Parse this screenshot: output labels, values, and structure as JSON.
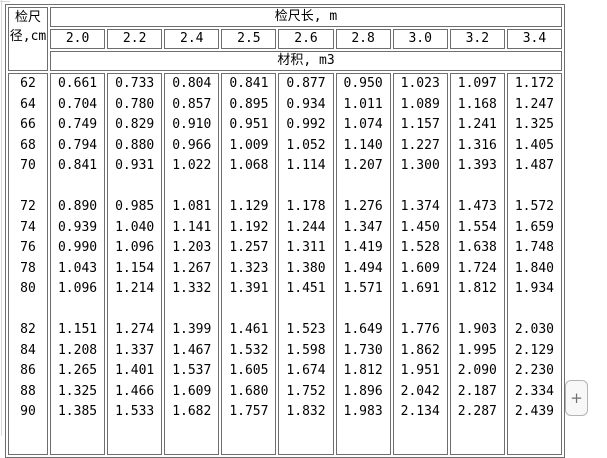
{
  "table": {
    "corner_header_line1": "检尺",
    "corner_header_line2": "径,cm",
    "length_header": "检尺长, m",
    "volume_header": "材积, m3",
    "length_columns": [
      "2.0",
      "2.2",
      "2.4",
      "2.5",
      "2.6",
      "2.8",
      "3.0",
      "3.2",
      "3.4"
    ],
    "groups": [
      {
        "rows": [
          {
            "diameter": "62",
            "values": [
              "0.661",
              "0.733",
              "0.804",
              "0.841",
              "0.877",
              "0.950",
              "1.023",
              "1.097",
              "1.172"
            ]
          },
          {
            "diameter": "64",
            "values": [
              "0.704",
              "0.780",
              "0.857",
              "0.895",
              "0.934",
              "1.011",
              "1.089",
              "1.168",
              "1.247"
            ]
          },
          {
            "diameter": "66",
            "values": [
              "0.749",
              "0.829",
              "0.910",
              "0.951",
              "0.992",
              "1.074",
              "1.157",
              "1.241",
              "1.325"
            ]
          },
          {
            "diameter": "68",
            "values": [
              "0.794",
              "0.880",
              "0.966",
              "1.009",
              "1.052",
              "1.140",
              "1.227",
              "1.316",
              "1.405"
            ]
          },
          {
            "diameter": "70",
            "values": [
              "0.841",
              "0.931",
              "1.022",
              "1.068",
              "1.114",
              "1.207",
              "1.300",
              "1.393",
              "1.487"
            ]
          }
        ]
      },
      {
        "rows": [
          {
            "diameter": "72",
            "values": [
              "0.890",
              "0.985",
              "1.081",
              "1.129",
              "1.178",
              "1.276",
              "1.374",
              "1.473",
              "1.572"
            ]
          },
          {
            "diameter": "74",
            "values": [
              "0.939",
              "1.040",
              "1.141",
              "1.192",
              "1.244",
              "1.347",
              "1.450",
              "1.554",
              "1.659"
            ]
          },
          {
            "diameter": "76",
            "values": [
              "0.990",
              "1.096",
              "1.203",
              "1.257",
              "1.311",
              "1.419",
              "1.528",
              "1.638",
              "1.748"
            ]
          },
          {
            "diameter": "78",
            "values": [
              "1.043",
              "1.154",
              "1.267",
              "1.323",
              "1.380",
              "1.494",
              "1.609",
              "1.724",
              "1.840"
            ]
          },
          {
            "diameter": "80",
            "values": [
              "1.096",
              "1.214",
              "1.332",
              "1.391",
              "1.451",
              "1.571",
              "1.691",
              "1.812",
              "1.934"
            ]
          }
        ]
      },
      {
        "rows": [
          {
            "diameter": "82",
            "values": [
              "1.151",
              "1.274",
              "1.399",
              "1.461",
              "1.523",
              "1.649",
              "1.776",
              "1.903",
              "2.030"
            ]
          },
          {
            "diameter": "84",
            "values": [
              "1.208",
              "1.337",
              "1.467",
              "1.532",
              "1.598",
              "1.730",
              "1.862",
              "1.995",
              "2.129"
            ]
          },
          {
            "diameter": "86",
            "values": [
              "1.265",
              "1.401",
              "1.537",
              "1.605",
              "1.674",
              "1.812",
              "1.951",
              "2.090",
              "2.230"
            ]
          },
          {
            "diameter": "88",
            "values": [
              "1.325",
              "1.466",
              "1.609",
              "1.680",
              "1.752",
              "1.896",
              "2.042",
              "2.187",
              "2.334"
            ]
          },
          {
            "diameter": "90",
            "values": [
              "1.385",
              "1.533",
              "1.682",
              "1.757",
              "1.832",
              "1.983",
              "2.134",
              "2.287",
              "2.439"
            ]
          }
        ]
      }
    ]
  },
  "controls": {
    "expand_button": "+"
  },
  "colors": {
    "border": "#6e6e6e",
    "button_border": "#b4b4b4",
    "button_bg": "#f8f8f8"
  }
}
